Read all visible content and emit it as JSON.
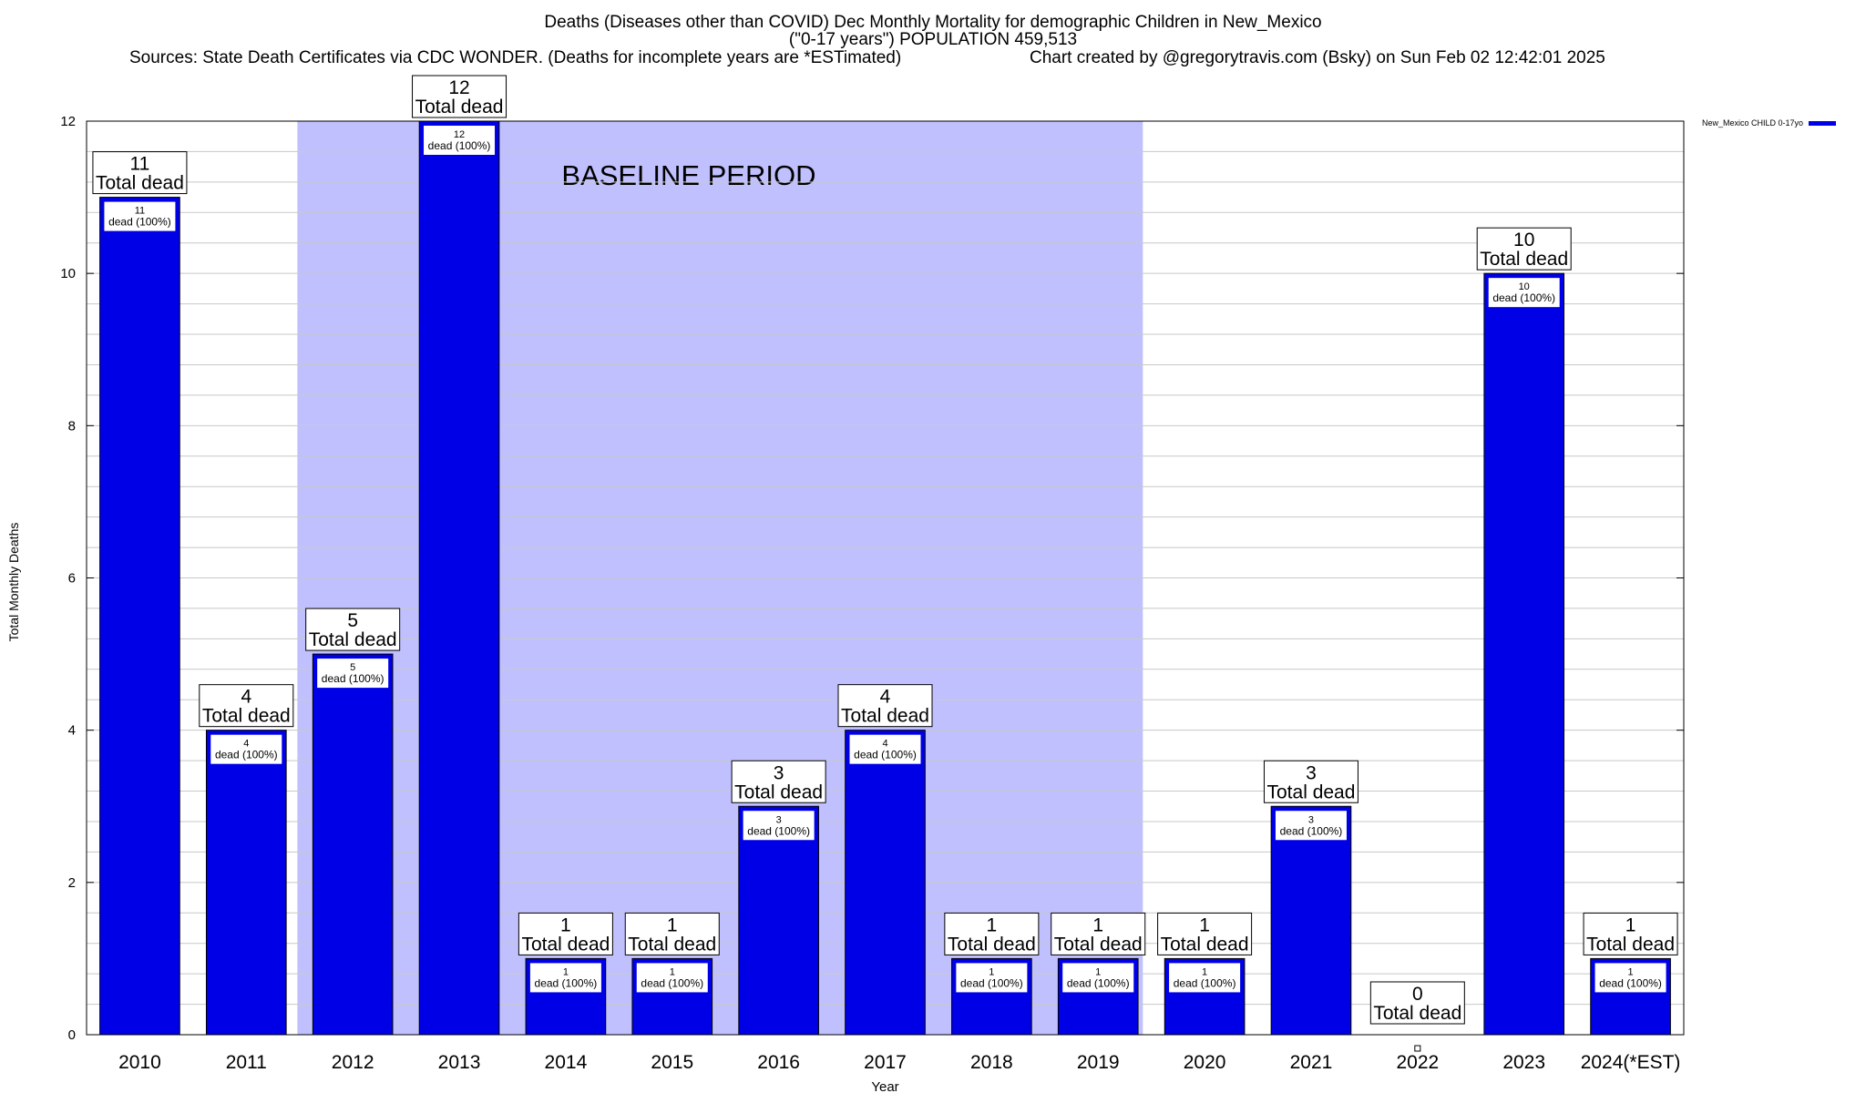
{
  "title": {
    "line1": "Deaths (Diseases other than COVID) Dec Monthly Mortality for demographic Children in New_Mexico",
    "line2": "(\"0-17 years\") POPULATION 459,513",
    "sources": "Sources: State Death Certificates via CDC WONDER. (Deaths for incomplete years are *ESTimated)",
    "credit": "Chart created by @gregorytravis.com (Bsky) on Sun Feb 02 12:42:01 2025"
  },
  "colors": {
    "bar": "#0000e6",
    "baseline_band": "#c0c0ff",
    "grid": "#c8c8c8"
  },
  "chart_data": {
    "type": "bar",
    "xlabel": "Year",
    "ylabel": "Total Monthly Deaths",
    "ylim": [
      0,
      12
    ],
    "yticks": [
      0,
      2,
      4,
      6,
      8,
      10,
      12
    ],
    "grid": true,
    "categories": [
      "2010",
      "2011",
      "2012",
      "2013",
      "2014",
      "2015",
      "2016",
      "2017",
      "2018",
      "2019",
      "2020",
      "2021",
      "2022",
      "2023",
      "2024(*EST)"
    ],
    "series": [
      {
        "name": "New_Mexico CHILD 0-17yo",
        "values": [
          11,
          4,
          5,
          12,
          1,
          1,
          3,
          4,
          1,
          1,
          1,
          3,
          0,
          10,
          1
        ]
      }
    ],
    "total_label_text": "Total dead",
    "inner_labels": [
      "dead (100%)",
      "dead (100%)",
      "dead (100%)",
      "dead (100%)",
      "dead (100%)",
      "dead (100%)",
      "dead (100%)",
      "dead (100%)",
      "dead (100%)",
      "dead (100%)",
      "dead (100%)",
      "dead (100%)",
      "",
      "dead (100%)",
      "dead (100%)"
    ],
    "baseline_band": {
      "label": "BASELINE PERIOD",
      "from": "2012",
      "to": "2019"
    },
    "legend_position": "top-right"
  }
}
